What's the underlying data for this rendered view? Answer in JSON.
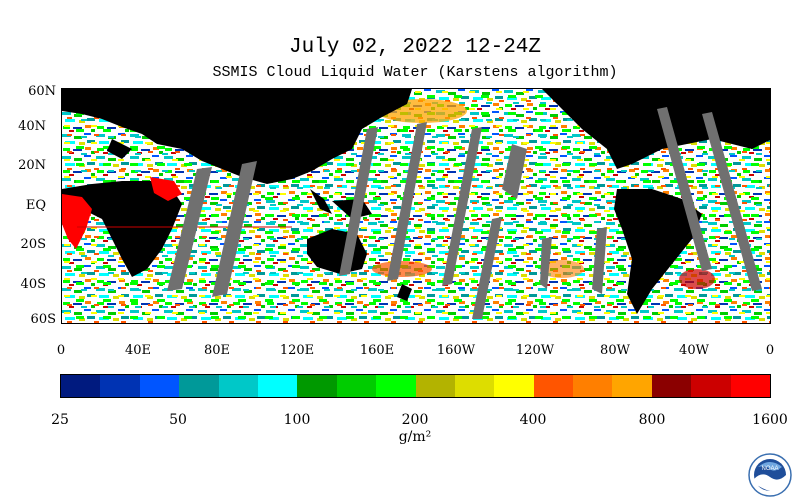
{
  "title": "July 02, 2022 12-24Z",
  "subtitle": "SSMIS Cloud Liquid Water (Karstens algorithm)",
  "latitude_labels": [
    "60N",
    "40N",
    "20N",
    "EQ",
    "20S",
    "40S",
    "60S"
  ],
  "longitude_labels": [
    "0",
    "40E",
    "80E",
    "120E",
    "160E",
    "160W",
    "120W",
    "80W",
    "40W",
    "0"
  ],
  "colorbar": {
    "colors": [
      "#001a7f",
      "#0033b3",
      "#0055ff",
      "#009999",
      "#00c8c8",
      "#00ffff",
      "#009900",
      "#00cc00",
      "#00ff00",
      "#b3b300",
      "#dddd00",
      "#ffff00",
      "#ff5500",
      "#ff7f00",
      "#ffa500",
      "#8b0000",
      "#cc0000",
      "#ff0000"
    ],
    "labels": [
      "25",
      "50",
      "100",
      "200",
      "400",
      "800",
      "1600"
    ],
    "unit": "g/m²"
  },
  "map_colors": {
    "land": "#000000",
    "no_data": "#707070",
    "ocean_clear": "#ffffff"
  },
  "logo": {
    "icon": "noaa-logo-icon",
    "text": "NOAA"
  }
}
